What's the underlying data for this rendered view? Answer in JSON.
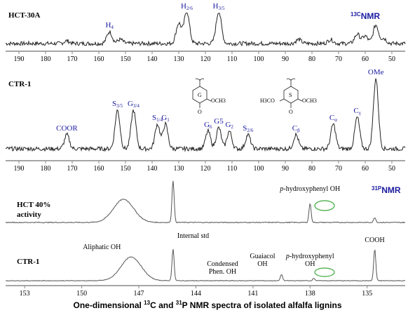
{
  "chart_data": [
    {
      "type": "line",
      "panel": "13C NMR spectrum",
      "sample": "HCT-30A",
      "nmr_label": "NMR",
      "nmr_nucleus": "13C",
      "xlim": [
        195,
        45
      ],
      "x_reversed": true,
      "ticks": [
        190,
        180,
        170,
        160,
        150,
        140,
        130,
        120,
        110,
        100,
        90,
        80,
        70,
        60,
        50
      ],
      "peaks": [
        {
          "label": "H",
          "sub": "4",
          "x": 156,
          "height": 0.35
        },
        {
          "label": "H",
          "sub": "2/6",
          "x": 127,
          "height": 0.95
        },
        {
          "label": "H",
          "sub": "3/5",
          "x": 115,
          "height": 0.95
        }
      ],
      "minor_peaks": [
        {
          "x": 172,
          "height": 0.08
        },
        {
          "x": 152,
          "height": 0.12
        },
        {
          "x": 130,
          "height": 0.6
        },
        {
          "x": 85,
          "height": 0.12
        },
        {
          "x": 73,
          "height": 0.12
        },
        {
          "x": 63,
          "height": 0.28
        },
        {
          "x": 60,
          "height": 0.22
        },
        {
          "x": 56,
          "height": 0.55
        },
        {
          "x": 53,
          "height": 0.15
        }
      ]
    },
    {
      "type": "line",
      "panel": "13C NMR spectrum",
      "sample": "CTR-1",
      "xlim": [
        195,
        45
      ],
      "x_reversed": true,
      "ticks": [
        190,
        180,
        170,
        160,
        150,
        140,
        130,
        120,
        110,
        100,
        90,
        80,
        70,
        60,
        50
      ],
      "peaks": [
        {
          "label": "COOR",
          "sub": "",
          "x": 172,
          "height": 0.2
        },
        {
          "label": "S",
          "sub": "3/5",
          "x": 153,
          "height": 0.55
        },
        {
          "label": "G",
          "sub": "3/4",
          "x": 147,
          "height": 0.55
        },
        {
          "label": "S",
          "sub": "1/4",
          "x": 138,
          "height": 0.35
        },
        {
          "label": "G",
          "sub": "1",
          "x": 135,
          "height": 0.35
        },
        {
          "label": "G",
          "sub": "6",
          "x": 119,
          "height": 0.25
        },
        {
          "label": "G5",
          "sub": "",
          "x": 115,
          "height": 0.3
        },
        {
          "label": "G",
          "sub": "2",
          "x": 111,
          "height": 0.25
        },
        {
          "label": "S",
          "sub": "2/6",
          "x": 104,
          "height": 0.2
        },
        {
          "label": "C",
          "sub": "β",
          "x": 86,
          "height": 0.2
        },
        {
          "label": "C",
          "sub": "α",
          "x": 72,
          "height": 0.35
        },
        {
          "label": "C",
          "sub": "γ",
          "x": 63,
          "height": 0.45
        },
        {
          "label": "OMe",
          "sub": "",
          "x": 56,
          "height": 1.0
        }
      ],
      "structures": [
        {
          "ring_label": "G",
          "substituents": [
            "OCH3"
          ]
        },
        {
          "ring_label": "S",
          "substituents": [
            "H3CO",
            "OCH3"
          ]
        }
      ]
    },
    {
      "type": "line",
      "panel": "31P NMR spectrum",
      "sample_lines": [
        "HCT 40%",
        "activity"
      ],
      "nmr_label": "NMR",
      "nmr_nucleus": "31P",
      "xlim": [
        154,
        133
      ],
      "x_reversed": true,
      "annotations": [
        {
          "text": "p-hydroxyphenyl OH",
          "x": 138
        }
      ],
      "peaks": [
        {
          "x": 147.8,
          "height": 0.55
        },
        {
          "x": 145.2,
          "height": 1.0
        },
        {
          "x": 138.0,
          "height": 0.45
        },
        {
          "x": 134.6,
          "height": 0.12
        }
      ]
    },
    {
      "type": "line",
      "panel": "31P NMR spectrum",
      "sample": "CTR-1",
      "xlim": [
        154,
        133
      ],
      "x_reversed": true,
      "ticks": [
        153,
        150,
        147,
        144,
        141,
        138,
        135
      ],
      "annotations": [
        {
          "text": "Aliphatic OH",
          "x": 148.5
        },
        {
          "text": "Internal std",
          "x": 145.2
        },
        {
          "text": "Condensed",
          "x": 142.6
        },
        {
          "text": "Phen. OH",
          "x": 142.6
        },
        {
          "text": "Guaiacol",
          "x": 140.5
        },
        {
          "text": "OH",
          "x": 140.5
        },
        {
          "text": "p-hydroxyphenyl",
          "x": 138.0
        },
        {
          "text": "OH",
          "x": 138.0
        },
        {
          "text": "COOH",
          "x": 134.6
        }
      ],
      "peaks": [
        {
          "x": 147.4,
          "height": 0.75
        },
        {
          "x": 145.2,
          "height": 1.0
        },
        {
          "x": 139.5,
          "height": 0.2
        },
        {
          "x": 137.8,
          "height": 0.08
        },
        {
          "x": 134.6,
          "height": 1.0
        }
      ]
    }
  ],
  "caption": {
    "prefix": "One-dimensional ",
    "iso1": "13",
    "mid1": "C and ",
    "iso2": "31",
    "mid2": "P NMR spectra of isolated alfalfa lignins"
  },
  "colors": {
    "spectrum": "#222222",
    "nmr_label": "#1a1aa0",
    "peak_label": "#1a1aa0",
    "circle": "#3ca83c"
  }
}
